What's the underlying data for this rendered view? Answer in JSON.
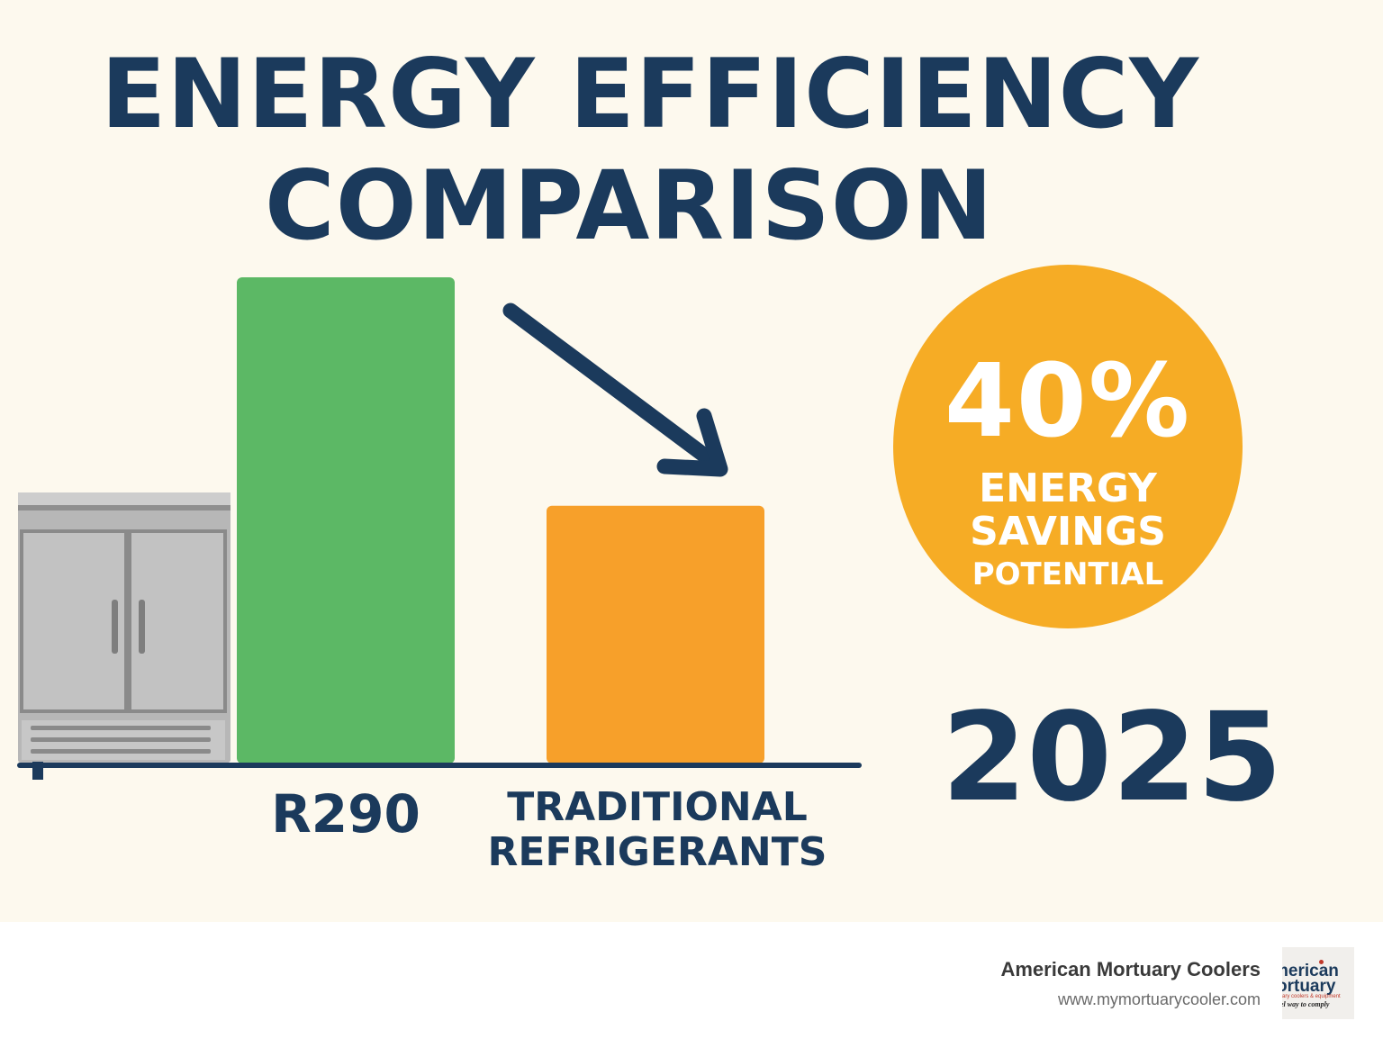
{
  "title": {
    "line1": "ENERGY EFFICIENCY",
    "line2": "COMPARISON"
  },
  "chart_data": {
    "type": "bar",
    "categories": [
      "R290",
      "TRADITIONAL REFRIGERANTS"
    ],
    "category_lines": [
      [
        "R290"
      ],
      [
        "TRADITIONAL",
        "REFRIGERANTS"
      ]
    ],
    "values": [
      100,
      53
    ],
    "value_scale": "relative, unlabeled (R290 bar = 100)",
    "colors": [
      "#5cb865",
      "#f7a02a"
    ],
    "trend_arrow": "down",
    "grid": false,
    "axes_labeled": false
  },
  "badge": {
    "value": "40%",
    "line1": "ENERGY",
    "line2": "SAVINGS",
    "line3": "POTENTIAL",
    "color": "#f6ac25"
  },
  "year": "2025",
  "footer": {
    "company": "American Mortuary Coolers",
    "url": "www.mymortuarycooler.com",
    "logo": {
      "word1": "merican",
      "word2": "ortuary",
      "tag1": "ary coolers & equipment",
      "tag2": "el way to comply"
    }
  },
  "icons": {
    "refrigerator": "refrigerator-icon",
    "arrow": "arrow-down-right-icon"
  },
  "colors": {
    "background": "#fdf9ee",
    "navy": "#1b3a5c",
    "green": "#5cb865",
    "orange": "#f7a02a",
    "badge": "#f6ac25"
  }
}
